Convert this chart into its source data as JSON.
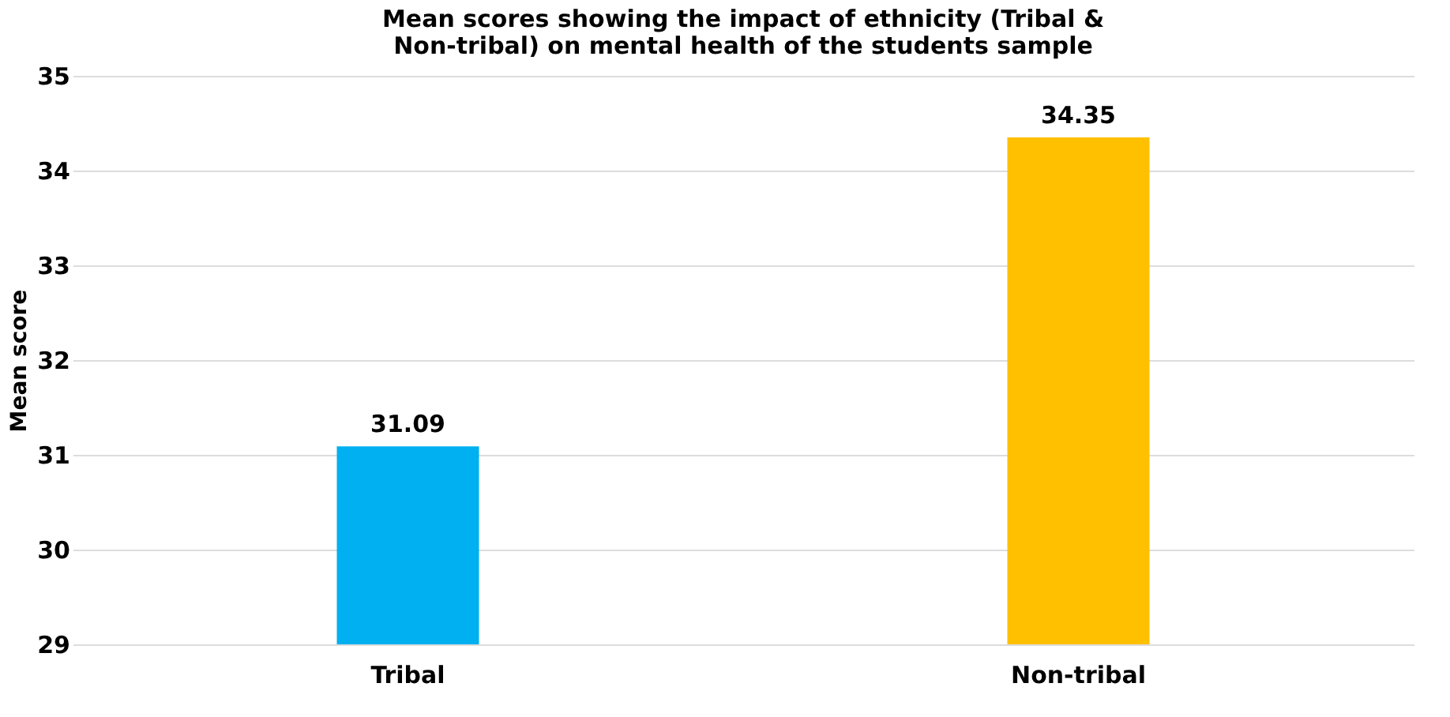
{
  "chart_data": {
    "type": "bar",
    "title": "Mean scores showing the impact of ethnicity (Tribal & Non-tribal) on mental health of the students sample",
    "categories": [
      "Tribal",
      "Non-tribal"
    ],
    "values": [
      31.09,
      34.35
    ],
    "colors": [
      "#00b0f0",
      "#ffc000"
    ],
    "ylabel": "Mean score",
    "ylim": [
      29,
      35
    ],
    "yticks": [
      29,
      30,
      31,
      32,
      33,
      34,
      35
    ],
    "grid": "y",
    "data_labels": true
  }
}
